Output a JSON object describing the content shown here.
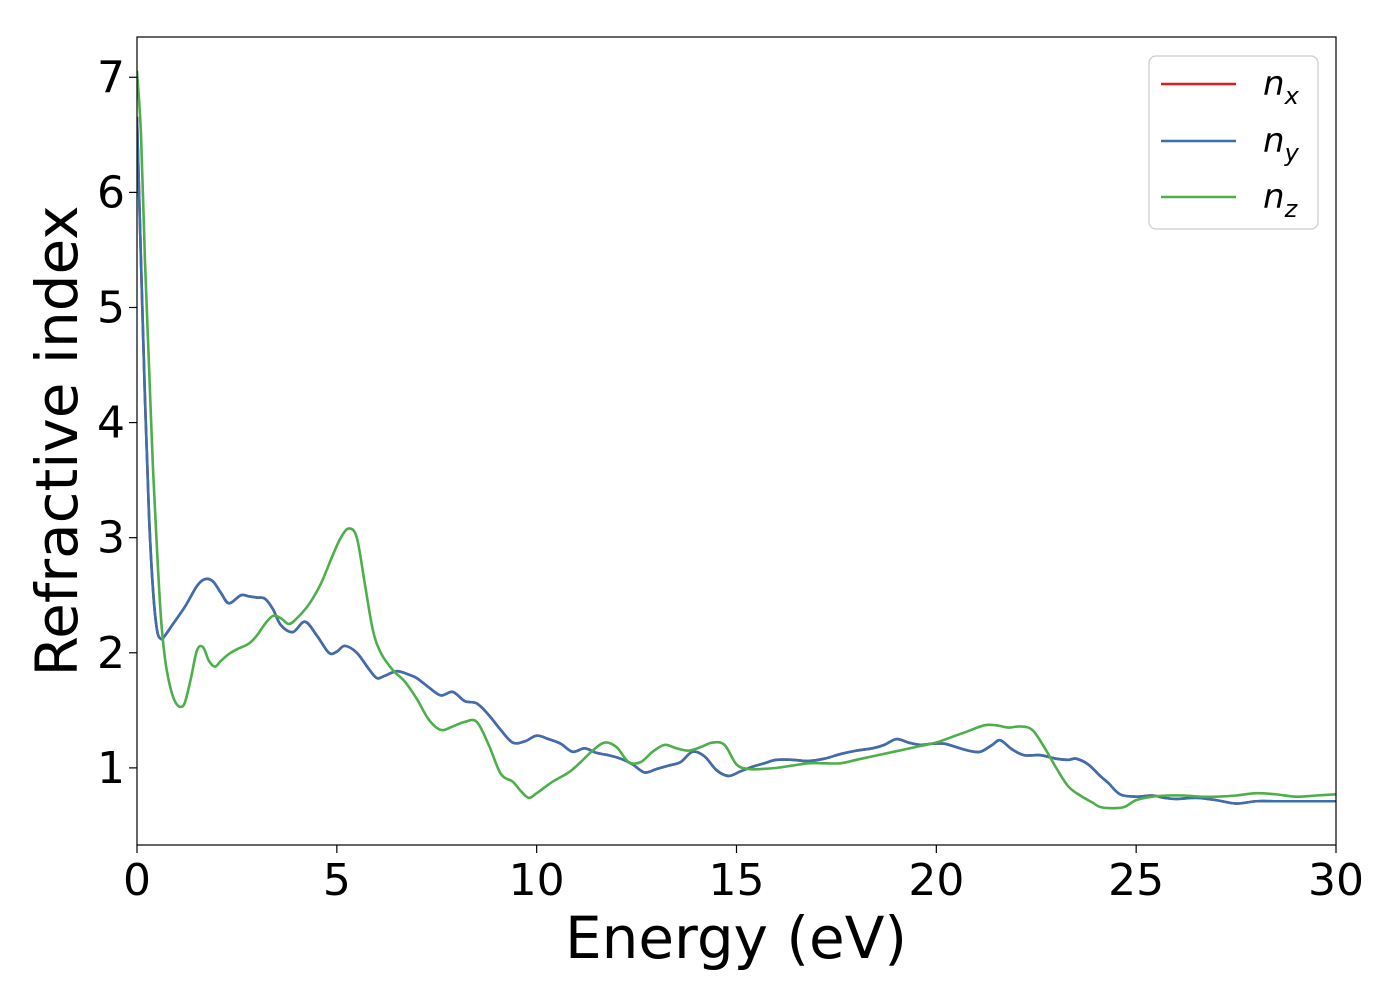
{
  "chart_data": {
    "type": "line",
    "xlabel": "Energy (eV)",
    "ylabel": "Refractive index",
    "xlim": [
      0,
      30
    ],
    "ylim": [
      0.33,
      7.35
    ],
    "x_ticks": [
      0,
      5,
      10,
      15,
      20,
      25,
      30
    ],
    "y_ticks": [
      1,
      2,
      3,
      4,
      5,
      6,
      7
    ],
    "grid": false,
    "legend_position": "top-right",
    "series": [
      {
        "name": "n_x",
        "legend_base": "n",
        "legend_sub": "x",
        "color": "#e41a1c",
        "x": [
          0,
          0.1,
          0.2,
          0.3,
          0.4,
          0.5,
          0.6,
          0.7,
          0.9,
          1.2,
          1.5,
          1.7,
          1.9,
          2.1,
          2.3,
          2.6,
          2.8,
          3.0,
          3.2,
          3.4,
          3.6,
          3.9,
          4.2,
          4.5,
          4.8,
          5.0,
          5.2,
          5.5,
          5.8,
          6.0,
          6.2,
          6.5,
          6.8,
          7.0,
          7.3,
          7.6,
          7.9,
          8.2,
          8.5,
          8.8,
          9.1,
          9.4,
          9.7,
          10.0,
          10.3,
          10.6,
          10.9,
          11.2,
          11.5,
          11.8,
          12.1,
          12.4,
          12.7,
          13.0,
          13.3,
          13.6,
          13.9,
          14.2,
          14.5,
          14.8,
          15.1,
          15.4,
          15.7,
          16.0,
          16.4,
          16.8,
          17.2,
          17.6,
          18.0,
          18.4,
          18.7,
          19.0,
          19.3,
          19.6,
          19.9,
          20.2,
          20.5,
          20.8,
          21.1,
          21.4,
          21.6,
          21.9,
          22.2,
          22.6,
          23.0,
          23.3,
          23.5,
          23.8,
          24.1,
          24.3,
          24.6,
          25.0,
          25.4,
          25.7,
          26.0,
          26.5,
          27.0,
          27.5,
          28.0,
          28.5,
          29.0,
          29.5,
          30.0
        ],
        "y": [
          6.65,
          5.4,
          4.2,
          3.2,
          2.55,
          2.2,
          2.12,
          2.15,
          2.25,
          2.4,
          2.58,
          2.64,
          2.62,
          2.52,
          2.43,
          2.5,
          2.49,
          2.48,
          2.47,
          2.38,
          2.24,
          2.18,
          2.27,
          2.15,
          2.0,
          2.01,
          2.06,
          2.0,
          1.86,
          1.78,
          1.8,
          1.84,
          1.81,
          1.78,
          1.7,
          1.63,
          1.66,
          1.58,
          1.56,
          1.46,
          1.33,
          1.22,
          1.23,
          1.28,
          1.25,
          1.21,
          1.14,
          1.17,
          1.13,
          1.11,
          1.08,
          1.03,
          0.96,
          0.99,
          1.02,
          1.05,
          1.14,
          1.1,
          0.98,
          0.93,
          0.97,
          1.01,
          1.04,
          1.07,
          1.07,
          1.06,
          1.08,
          1.12,
          1.15,
          1.17,
          1.2,
          1.25,
          1.22,
          1.2,
          1.21,
          1.21,
          1.18,
          1.15,
          1.14,
          1.2,
          1.24,
          1.16,
          1.11,
          1.11,
          1.08,
          1.07,
          1.08,
          1.03,
          0.93,
          0.87,
          0.77,
          0.75,
          0.76,
          0.74,
          0.73,
          0.74,
          0.72,
          0.69,
          0.71,
          0.71,
          0.71,
          0.71,
          0.71
        ]
      },
      {
        "name": "n_y",
        "legend_base": "n",
        "legend_sub": "y",
        "color": "#3a6fb0",
        "x": [
          0,
          0.1,
          0.2,
          0.3,
          0.4,
          0.5,
          0.6,
          0.7,
          0.9,
          1.2,
          1.5,
          1.7,
          1.9,
          2.1,
          2.3,
          2.6,
          2.8,
          3.0,
          3.2,
          3.4,
          3.6,
          3.9,
          4.2,
          4.5,
          4.8,
          5.0,
          5.2,
          5.5,
          5.8,
          6.0,
          6.2,
          6.5,
          6.8,
          7.0,
          7.3,
          7.6,
          7.9,
          8.2,
          8.5,
          8.8,
          9.1,
          9.4,
          9.7,
          10.0,
          10.3,
          10.6,
          10.9,
          11.2,
          11.5,
          11.8,
          12.1,
          12.4,
          12.7,
          13.0,
          13.3,
          13.6,
          13.9,
          14.2,
          14.5,
          14.8,
          15.1,
          15.4,
          15.7,
          16.0,
          16.4,
          16.8,
          17.2,
          17.6,
          18.0,
          18.4,
          18.7,
          19.0,
          19.3,
          19.6,
          19.9,
          20.2,
          20.5,
          20.8,
          21.1,
          21.4,
          21.6,
          21.9,
          22.2,
          22.6,
          23.0,
          23.3,
          23.5,
          23.8,
          24.1,
          24.3,
          24.6,
          25.0,
          25.4,
          25.7,
          26.0,
          26.5,
          27.0,
          27.5,
          28.0,
          28.5,
          29.0,
          29.5,
          30.0
        ],
        "y": [
          6.65,
          5.4,
          4.2,
          3.2,
          2.55,
          2.2,
          2.12,
          2.15,
          2.25,
          2.4,
          2.58,
          2.64,
          2.62,
          2.52,
          2.43,
          2.5,
          2.49,
          2.48,
          2.47,
          2.38,
          2.24,
          2.18,
          2.27,
          2.15,
          2.0,
          2.01,
          2.06,
          2.0,
          1.86,
          1.78,
          1.8,
          1.84,
          1.81,
          1.78,
          1.7,
          1.63,
          1.66,
          1.58,
          1.56,
          1.46,
          1.33,
          1.22,
          1.23,
          1.28,
          1.25,
          1.21,
          1.14,
          1.17,
          1.13,
          1.11,
          1.08,
          1.03,
          0.96,
          0.99,
          1.02,
          1.05,
          1.14,
          1.1,
          0.98,
          0.93,
          0.97,
          1.01,
          1.04,
          1.07,
          1.07,
          1.06,
          1.08,
          1.12,
          1.15,
          1.17,
          1.2,
          1.25,
          1.22,
          1.2,
          1.21,
          1.21,
          1.18,
          1.15,
          1.14,
          1.2,
          1.24,
          1.16,
          1.11,
          1.11,
          1.08,
          1.07,
          1.08,
          1.03,
          0.93,
          0.87,
          0.77,
          0.75,
          0.76,
          0.74,
          0.73,
          0.74,
          0.72,
          0.69,
          0.71,
          0.71,
          0.71,
          0.71,
          0.71
        ]
      },
      {
        "name": "n_z",
        "legend_base": "n",
        "legend_sub": "z",
        "color": "#4daf4a",
        "x": [
          0,
          0.1,
          0.2,
          0.3,
          0.4,
          0.5,
          0.6,
          0.7,
          0.8,
          0.9,
          1.0,
          1.1,
          1.2,
          1.35,
          1.5,
          1.65,
          1.8,
          1.95,
          2.1,
          2.3,
          2.5,
          2.8,
          3.0,
          3.2,
          3.4,
          3.6,
          3.8,
          4.0,
          4.3,
          4.6,
          4.9,
          5.1,
          5.3,
          5.5,
          5.7,
          5.9,
          6.1,
          6.4,
          6.7,
          7.0,
          7.3,
          7.6,
          7.9,
          8.2,
          8.5,
          8.8,
          9.1,
          9.4,
          9.6,
          9.8,
          10.0,
          10.4,
          10.8,
          11.1,
          11.4,
          11.7,
          12.0,
          12.3,
          12.6,
          12.9,
          13.2,
          13.5,
          13.8,
          14.1,
          14.4,
          14.7,
          15.0,
          15.3,
          15.6,
          16.0,
          16.4,
          16.8,
          17.2,
          17.6,
          18.0,
          18.4,
          18.8,
          19.2,
          19.6,
          20.0,
          20.4,
          20.8,
          21.2,
          21.5,
          21.8,
          22.1,
          22.4,
          22.7,
          23.0,
          23.3,
          23.6,
          23.9,
          24.1,
          24.4,
          24.7,
          25.0,
          25.4,
          25.8,
          26.2,
          26.6,
          27.0,
          27.5,
          28.0,
          28.5,
          29.0,
          29.5,
          30.0
        ],
        "y": [
          7.05,
          6.5,
          5.4,
          4.5,
          3.6,
          2.9,
          2.3,
          1.95,
          1.75,
          1.62,
          1.55,
          1.53,
          1.57,
          1.78,
          2.02,
          2.05,
          1.93,
          1.88,
          1.93,
          1.99,
          2.03,
          2.08,
          2.15,
          2.25,
          2.32,
          2.3,
          2.25,
          2.3,
          2.42,
          2.6,
          2.85,
          3.0,
          3.08,
          3.0,
          2.6,
          2.2,
          2.0,
          1.85,
          1.75,
          1.6,
          1.42,
          1.33,
          1.36,
          1.4,
          1.4,
          1.2,
          0.95,
          0.88,
          0.8,
          0.74,
          0.78,
          0.88,
          0.96,
          1.05,
          1.15,
          1.22,
          1.18,
          1.05,
          1.05,
          1.14,
          1.2,
          1.17,
          1.15,
          1.18,
          1.22,
          1.2,
          1.03,
          0.99,
          0.99,
          1.0,
          1.02,
          1.04,
          1.04,
          1.04,
          1.07,
          1.1,
          1.13,
          1.16,
          1.19,
          1.22,
          1.27,
          1.32,
          1.37,
          1.37,
          1.35,
          1.36,
          1.33,
          1.18,
          1.0,
          0.84,
          0.76,
          0.7,
          0.66,
          0.65,
          0.66,
          0.72,
          0.75,
          0.76,
          0.76,
          0.75,
          0.75,
          0.76,
          0.78,
          0.77,
          0.75,
          0.76,
          0.77
        ]
      }
    ]
  }
}
